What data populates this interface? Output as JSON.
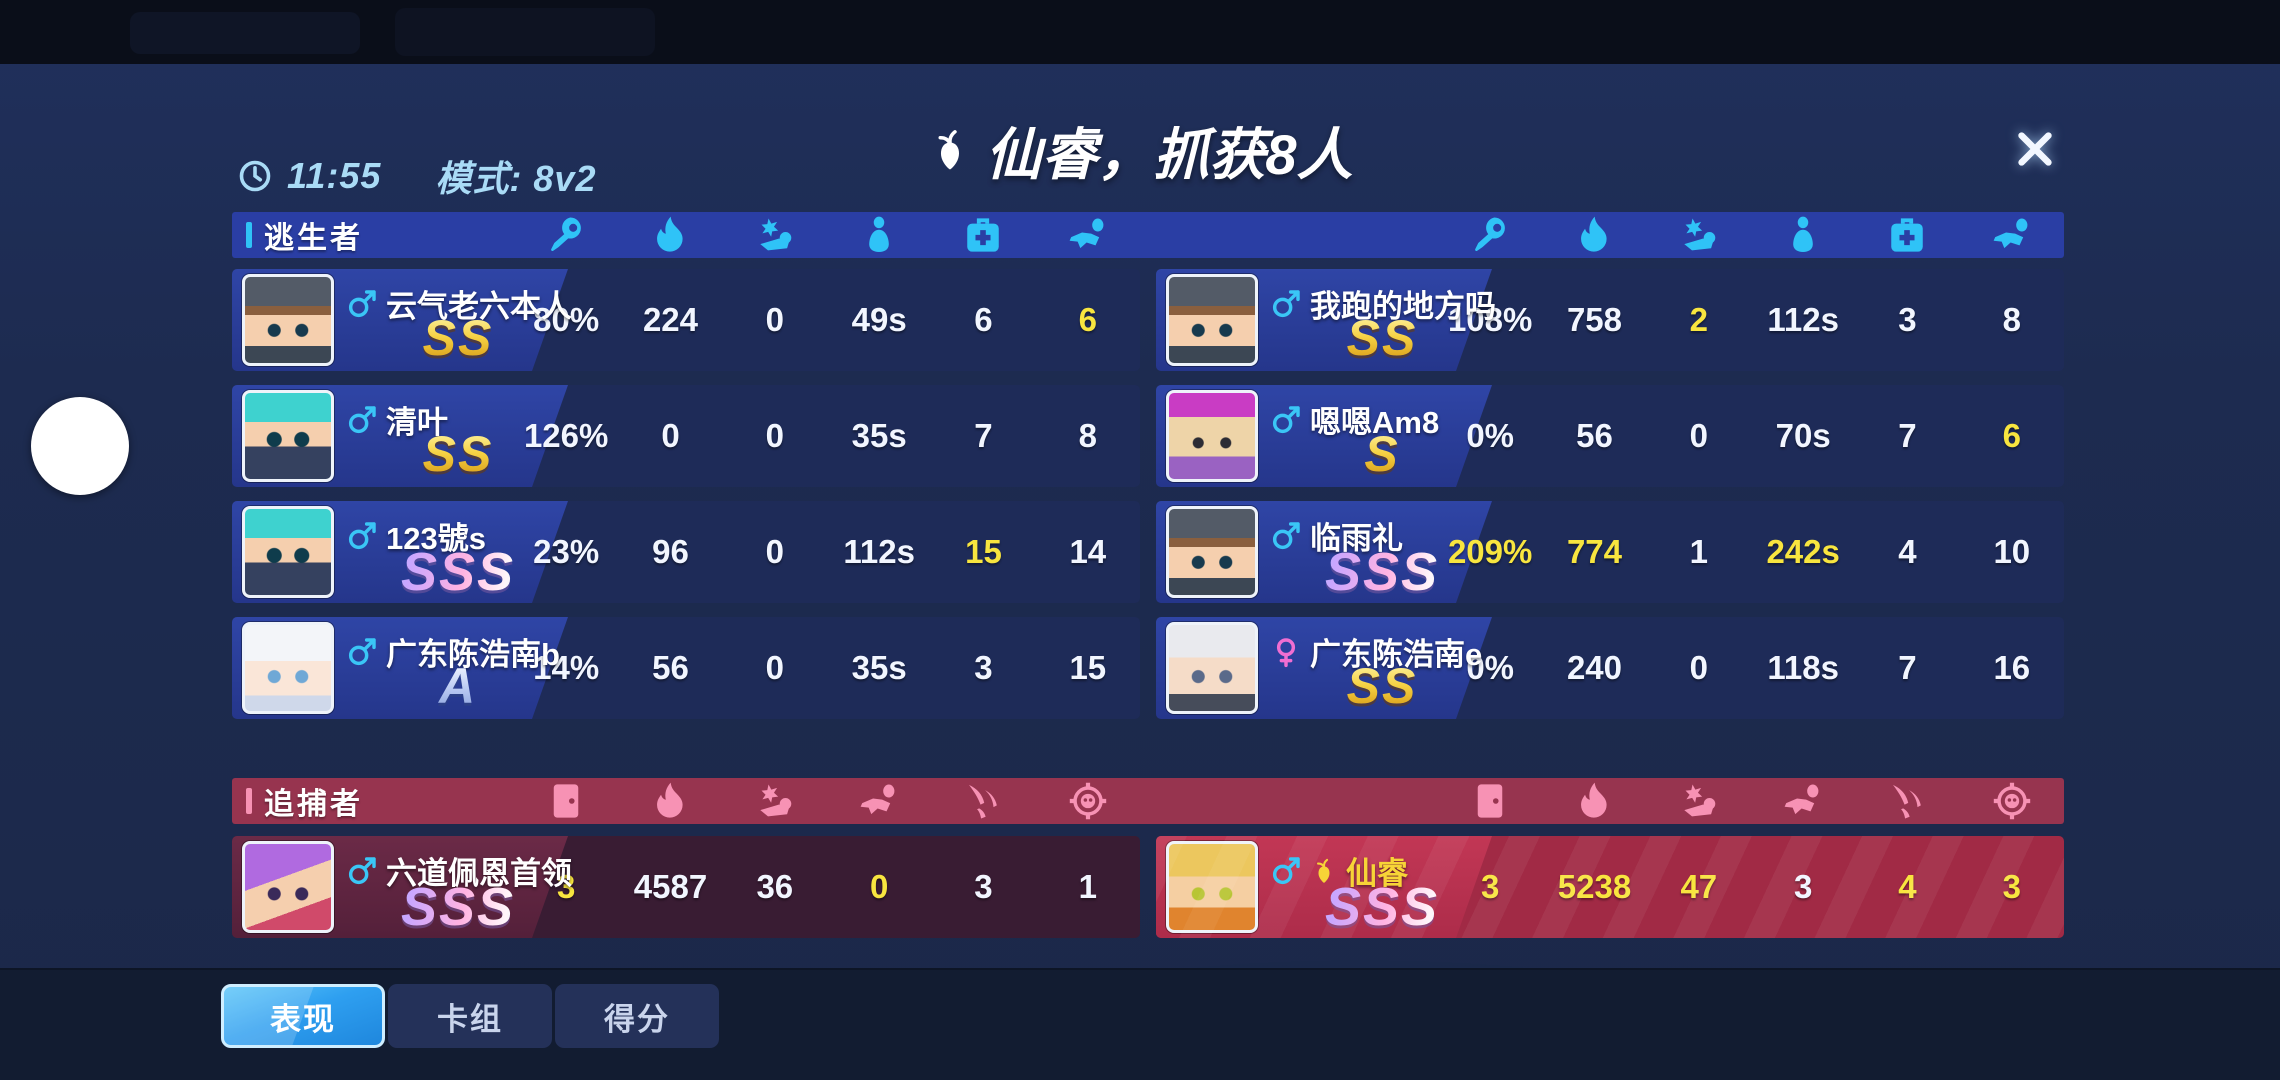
{
  "meta": {
    "time": "11:55",
    "mode": "模式: 8v2",
    "clock_icon": "clock-icon"
  },
  "title": {
    "text": "仙睿，抓获8人",
    "prefix_icon": "radish-icon"
  },
  "close": {
    "icon": "close-icon"
  },
  "colors": {
    "escaper_header": "#2a3ea4",
    "escaper_icon": "#2fc3f7",
    "chaser_header": "#97344f",
    "chaser_icon": "#f792b4",
    "highlight_value": "#f8e53f",
    "self_row": "#a12a45",
    "tab_active": "#2e9ff0",
    "male": "#3ac6f6",
    "female": "#f06ed2",
    "gold_name": "#f7d437"
  },
  "teams": [
    {
      "id": "escapers",
      "label": "逃生者",
      "stat_icons": [
        "key-icon",
        "flame-icon",
        "stunned-icon",
        "cocoon-icon",
        "first-aid-icon",
        "flying-icon"
      ],
      "players": [
        {
          "name": "云气老六本人",
          "gender": "male",
          "rank": "SS",
          "avatar": "beanie",
          "stats": [
            "80%",
            "224",
            "0",
            "49s",
            "6",
            "6"
          ],
          "highlights": [
            5
          ]
        },
        {
          "name": "我跑的地方吗",
          "gender": "male",
          "rank": "SS",
          "avatar": "beanie",
          "stats": [
            "108%",
            "758",
            "2",
            "112s",
            "3",
            "8"
          ],
          "highlights": [
            2
          ]
        },
        {
          "name": "清叶",
          "gender": "male",
          "rank": "SS",
          "avatar": "ninja",
          "stats": [
            "126%",
            "0",
            "0",
            "35s",
            "7",
            "8"
          ],
          "highlights": []
        },
        {
          "name": "嗯嗯Am8",
          "gender": "male",
          "rank": "S",
          "avatar": "block",
          "stats": [
            "0%",
            "56",
            "0",
            "70s",
            "7",
            "6"
          ],
          "highlights": [
            5
          ]
        },
        {
          "name": "123號s",
          "gender": "male",
          "rank": "SSS",
          "avatar": "ninja",
          "stats": [
            "23%",
            "96",
            "0",
            "112s",
            "15",
            "14"
          ],
          "highlights": [
            4
          ]
        },
        {
          "name": "临雨礼",
          "gender": "male",
          "rank": "SSS",
          "avatar": "beanie",
          "stats": [
            "209%",
            "774",
            "1",
            "242s",
            "4",
            "10"
          ],
          "highlights": [
            0,
            1,
            3
          ]
        },
        {
          "name": "广东陈浩南b",
          "gender": "male",
          "rank": "A",
          "avatar": "white",
          "stats": [
            "14%",
            "56",
            "0",
            "35s",
            "3",
            "15"
          ],
          "highlights": []
        },
        {
          "name": "广东陈浩南e",
          "gender": "female",
          "rank": "SS",
          "avatar": "grey",
          "stats": [
            "0%",
            "240",
            "0",
            "118s",
            "7",
            "16"
          ],
          "highlights": []
        }
      ]
    },
    {
      "id": "chasers",
      "label": "追捕者",
      "stat_icons": [
        "door-icon",
        "flame-icon",
        "stunned-icon",
        "flying-icon",
        "claw-icon",
        "target-icon"
      ],
      "players": [
        {
          "name": "六道佩恩首领",
          "gender": "male",
          "rank": "SSS",
          "avatar": "purple",
          "stats": [
            "3",
            "4587",
            "36",
            "0",
            "3",
            "1"
          ],
          "highlights": [
            0,
            3
          ]
        },
        {
          "name": "仙睿",
          "gender": "male",
          "rank": "SSS",
          "avatar": "blonde",
          "name_icon": "radish-icon",
          "name_style": "gold",
          "self": true,
          "stats": [
            "3",
            "5238",
            "47",
            "3",
            "4",
            "3"
          ],
          "highlights": [
            0,
            1,
            2,
            4,
            5
          ]
        }
      ]
    }
  ],
  "tabs": [
    {
      "id": "performance",
      "label": "表现",
      "active": true
    },
    {
      "id": "deck",
      "label": "卡组",
      "active": false
    },
    {
      "id": "score",
      "label": "得分",
      "active": false
    }
  ]
}
